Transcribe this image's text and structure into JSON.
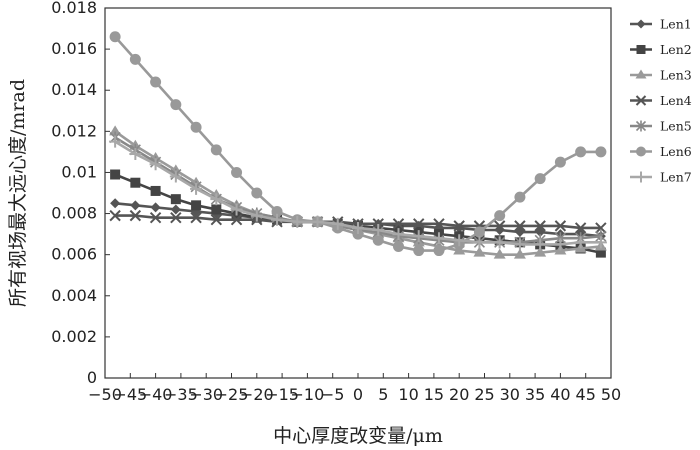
{
  "chart_data": {
    "type": "line",
    "title": "",
    "xlabel": "中心厚度改变量/μm",
    "ylabel": "所有视场最大远心度/mrad",
    "xlim": [
      -50,
      50
    ],
    "ylim": [
      0,
      0.018
    ],
    "x_ticks": [
      "−50",
      "−45",
      "−40",
      "−35",
      "−30",
      "−25",
      "−20",
      "−15",
      "−10",
      "−5",
      "0",
      "5",
      "10",
      "15",
      "20",
      "25",
      "30",
      "35",
      "40",
      "45",
      "50"
    ],
    "x_tick_values": [
      -50,
      -45,
      -40,
      -35,
      -30,
      -25,
      -20,
      -15,
      -10,
      -5,
      0,
      5,
      10,
      15,
      20,
      25,
      30,
      35,
      40,
      45,
      50
    ],
    "y_ticks": [
      "0",
      "0.002",
      "0.004",
      "0.006",
      "0.008",
      "0.01",
      "0.012",
      "0.014",
      "0.016",
      "0.018"
    ],
    "y_tick_values": [
      0,
      0.002,
      0.004,
      0.006,
      0.008,
      0.01,
      0.012,
      0.014,
      0.016,
      0.018
    ],
    "grid": false,
    "legend_position": "right",
    "x": [
      -48,
      -44,
      -40,
      -36,
      -32,
      -28,
      -24,
      -20,
      -16,
      -12,
      -8,
      -4,
      0,
      4,
      8,
      12,
      16,
      20,
      24,
      28,
      32,
      36,
      40,
      44,
      48
    ],
    "series": [
      {
        "name": "Len1",
        "marker": "diamond",
        "color": "#555555",
        "values": [
          0.0085,
          0.0084,
          0.0083,
          0.0082,
          0.0081,
          0.008,
          0.0079,
          0.0078,
          0.0077,
          0.0076,
          0.0076,
          0.0075,
          0.0075,
          0.0075,
          0.0074,
          0.0074,
          0.0073,
          0.0073,
          0.0072,
          0.0072,
          0.0071,
          0.0071,
          0.007,
          0.007,
          0.0069
        ]
      },
      {
        "name": "Len2",
        "marker": "square",
        "color": "#444444",
        "values": [
          0.0099,
          0.0095,
          0.0091,
          0.0087,
          0.0084,
          0.0082,
          0.008,
          0.0078,
          0.0077,
          0.0076,
          0.0076,
          0.0075,
          0.0074,
          0.0073,
          0.0072,
          0.0071,
          0.007,
          0.0069,
          0.0068,
          0.0067,
          0.0066,
          0.0065,
          0.0064,
          0.0063,
          0.0061
        ]
      },
      {
        "name": "Len3",
        "marker": "triangle",
        "color": "#9a9a9a",
        "values": [
          0.012,
          0.0113,
          0.0107,
          0.0101,
          0.0095,
          0.0089,
          0.0084,
          0.008,
          0.0078,
          0.0076,
          0.0076,
          0.0074,
          0.0072,
          0.007,
          0.0068,
          0.0066,
          0.0064,
          0.0062,
          0.0061,
          0.006,
          0.006,
          0.0061,
          0.0062,
          0.0063,
          0.0064
        ]
      },
      {
        "name": "Len4",
        "marker": "x",
        "color": "#555555",
        "values": [
          0.0079,
          0.0079,
          0.0078,
          0.0078,
          0.0078,
          0.0077,
          0.0077,
          0.0077,
          0.0076,
          0.0076,
          0.0076,
          0.0076,
          0.0075,
          0.0075,
          0.0075,
          0.0075,
          0.0075,
          0.0074,
          0.0074,
          0.0074,
          0.0074,
          0.0074,
          0.0074,
          0.0073,
          0.0073
        ]
      },
      {
        "name": "Len5",
        "marker": "asterisk",
        "color": "#888888",
        "values": [
          0.0117,
          0.0111,
          0.0105,
          0.0099,
          0.0093,
          0.0087,
          0.0083,
          0.008,
          0.0078,
          0.0076,
          0.0076,
          0.0074,
          0.0072,
          0.0071,
          0.0069,
          0.0068,
          0.0067,
          0.0066,
          0.0066,
          0.0066,
          0.0066,
          0.0067,
          0.0068,
          0.0068,
          0.0069
        ]
      },
      {
        "name": "Len6",
        "marker": "circle",
        "color": "#999999",
        "values": [
          0.0166,
          0.0155,
          0.0144,
          0.0133,
          0.0122,
          0.0111,
          0.01,
          0.009,
          0.0081,
          0.0077,
          0.0076,
          0.0073,
          0.007,
          0.0067,
          0.0064,
          0.0062,
          0.0062,
          0.0065,
          0.0071,
          0.0079,
          0.0088,
          0.0097,
          0.0105,
          0.011,
          0.011
        ]
      },
      {
        "name": "Len7",
        "marker": "plus",
        "color": "#a8a8a8",
        "values": [
          0.0115,
          0.0109,
          0.0104,
          0.0098,
          0.0092,
          0.0087,
          0.0082,
          0.0079,
          0.0077,
          0.0076,
          0.0076,
          0.0075,
          0.0073,
          0.0072,
          0.007,
          0.0069,
          0.0068,
          0.0067,
          0.0066,
          0.0066,
          0.0065,
          0.0065,
          0.0065,
          0.0066,
          0.0066
        ]
      }
    ]
  }
}
